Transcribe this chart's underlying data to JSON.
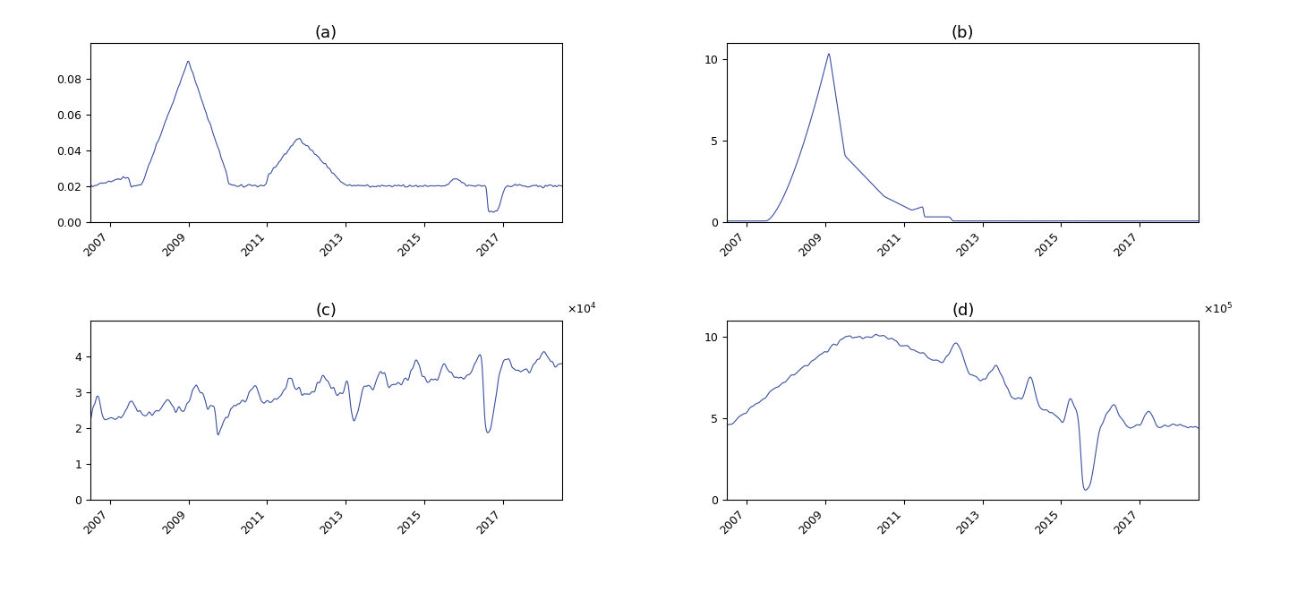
{
  "title_a": "(a)",
  "title_b": "(b)",
  "title_c": "(c)",
  "title_d": "(d)",
  "line_color": "#3a4fa0",
  "line_width": 0.8,
  "n_points": 3000,
  "start_year": 2006.5,
  "end_year": 2018.5,
  "xticks": [
    2007,
    2009,
    2011,
    2013,
    2015,
    2017
  ],
  "panel_a_ylim": [
    0,
    0.1
  ],
  "panel_a_yticks": [
    0,
    0.02,
    0.04,
    0.06,
    0.08
  ],
  "panel_b_ylim": [
    0,
    11
  ],
  "panel_b_yticks": [
    0,
    5,
    10
  ],
  "panel_c_ylim": [
    0,
    50000
  ],
  "panel_c_yticks": [
    0,
    10000,
    20000,
    30000,
    40000
  ],
  "panel_d_ylim": [
    0,
    1100000
  ],
  "panel_d_yticks": [
    0,
    500000,
    1000000
  ],
  "fig_width": 14.4,
  "fig_height": 6.8,
  "dpi": 100
}
